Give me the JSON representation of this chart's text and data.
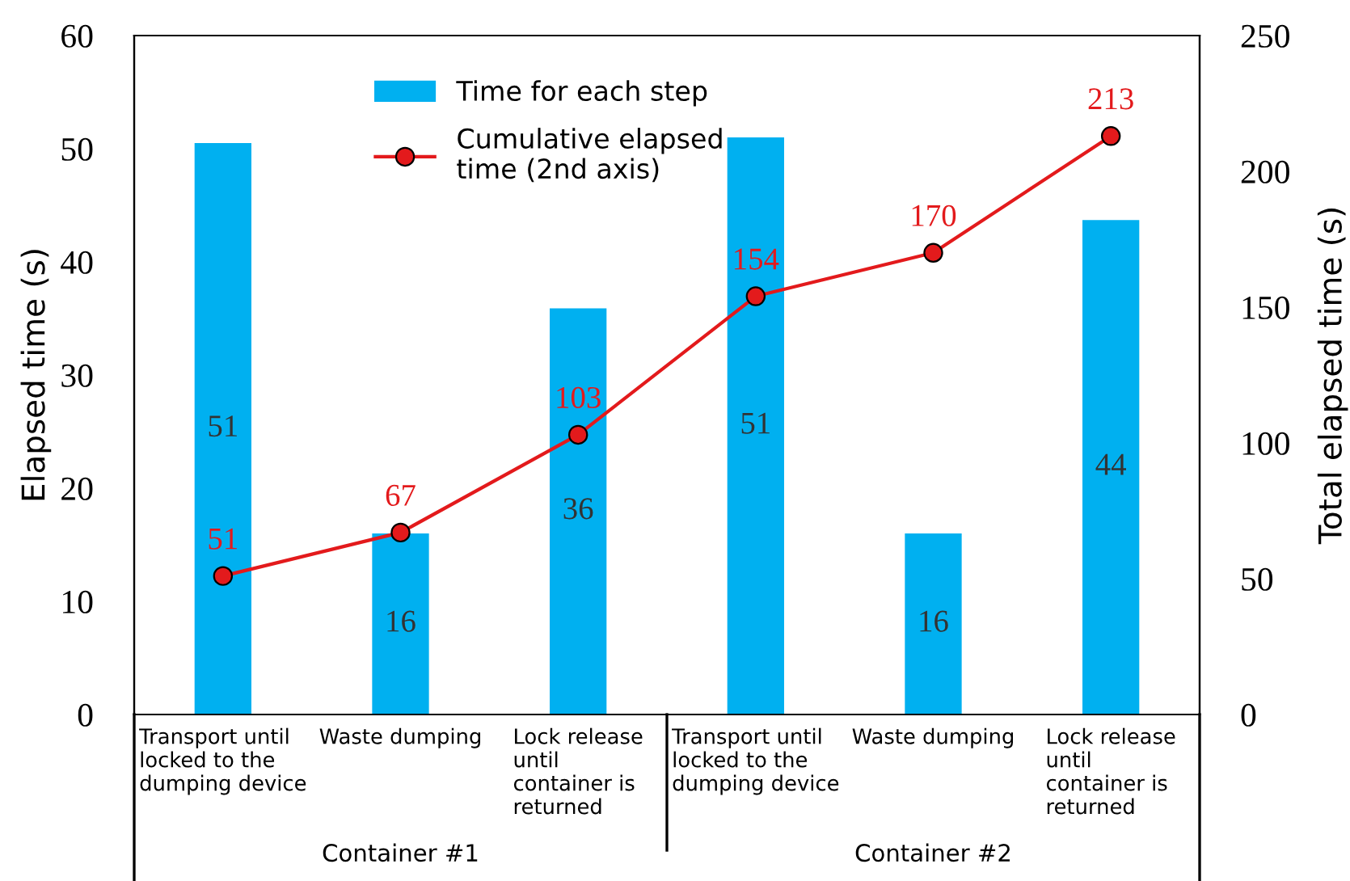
{
  "chart_data": {
    "type": "bar",
    "ylabel": "Elapsed time (s)",
    "y2label": "Total elapsed time (s)",
    "categories": [
      "Transport until\nlocked to the\ndumping device",
      "Waste dumping",
      "Lock release\nuntil\ncontainer is\nreturned",
      "Transport until\nlocked to the\ndumping device",
      "Waste dumping",
      "Lock release\nuntil\ncontainer is\nreturned"
    ],
    "series": [
      {
        "name": "Time for each step",
        "color": "#00b0f0",
        "values": [
          50.5,
          16,
          35.9,
          51,
          16,
          43.7
        ],
        "value_labels": [
          "51",
          "16",
          "36",
          "51",
          "16",
          "44"
        ]
      },
      {
        "name": "Cumulative elapsed\ntime (2nd axis)",
        "type": "line",
        "axis": "y2",
        "color": "#e31a1c",
        "marker": "circle",
        "values": [
          51,
          67,
          103,
          154,
          170,
          213
        ],
        "data_labels": true
      }
    ],
    "ylim": [
      0,
      60
    ],
    "yticks": [
      0,
      10,
      20,
      30,
      40,
      50,
      60
    ],
    "y2lim": [
      0,
      250
    ],
    "y2ticks": [
      0,
      50,
      100,
      150,
      200,
      250
    ],
    "annotations": [
      "Container #1",
      "Container #2"
    ],
    "legend": "top",
    "grid": false
  }
}
